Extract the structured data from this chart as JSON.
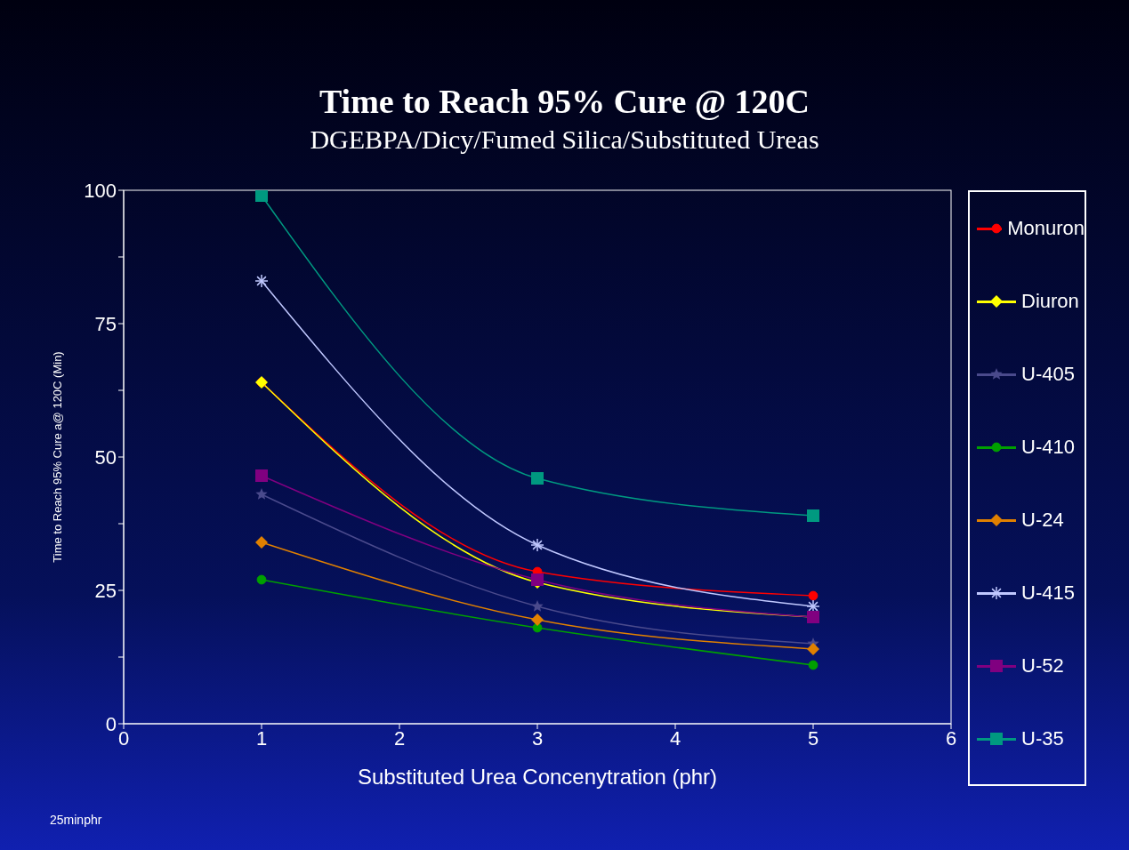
{
  "chart_data": {
    "type": "line",
    "title": "Time to Reach 95% Cure @ 120C",
    "subtitle": "DGEBPA/Dicy/Fumed Silica/Substituted Ureas",
    "xlabel": "Substituted Urea Concenytration (phr)",
    "ylabel": "Time to Reach 95%  Cure a@ 120C (Min)",
    "annotations": [
      "25minphr"
    ],
    "x": [
      1,
      3,
      5
    ],
    "series": [
      {
        "name": "Monuron",
        "color": "#ff0000",
        "marker": "circle",
        "values": [
          64,
          28.5,
          24
        ]
      },
      {
        "name": "Diuron",
        "color": "#ffff00",
        "marker": "diamond",
        "values": [
          64,
          26.5,
          20
        ]
      },
      {
        "name": "U-405",
        "color": "#4a4a8c",
        "marker": "star",
        "values": [
          43,
          22,
          15
        ]
      },
      {
        "name": "U-410",
        "color": "#00a000",
        "marker": "circle",
        "values": [
          27,
          18,
          11
        ]
      },
      {
        "name": "U-24",
        "color": "#e08000",
        "marker": "diamond",
        "values": [
          34,
          19.5,
          14
        ]
      },
      {
        "name": "U-415",
        "color": "#c0c8ff",
        "marker": "cross",
        "values": [
          83,
          33.5,
          22
        ]
      },
      {
        "name": "U-52",
        "color": "#800080",
        "marker": "square",
        "values": [
          46.5,
          27,
          20
        ]
      },
      {
        "name": "U-35",
        "color": "#009980",
        "marker": "square",
        "values": [
          99,
          46,
          39
        ]
      }
    ],
    "xlim": [
      0,
      6
    ],
    "xticks": [
      0,
      1,
      2,
      3,
      4,
      5,
      6
    ],
    "ylim": [
      0,
      100
    ],
    "yticks": [
      0,
      {
        "value": 12.5,
        "label": null
      },
      25,
      {
        "value": 37.5,
        "label": null
      },
      50,
      {
        "value": 62.5,
        "label": null
      },
      75,
      {
        "value": 87.5,
        "label": null
      },
      100
    ],
    "grid": false,
    "legend": "right",
    "line_style": "solid"
  }
}
